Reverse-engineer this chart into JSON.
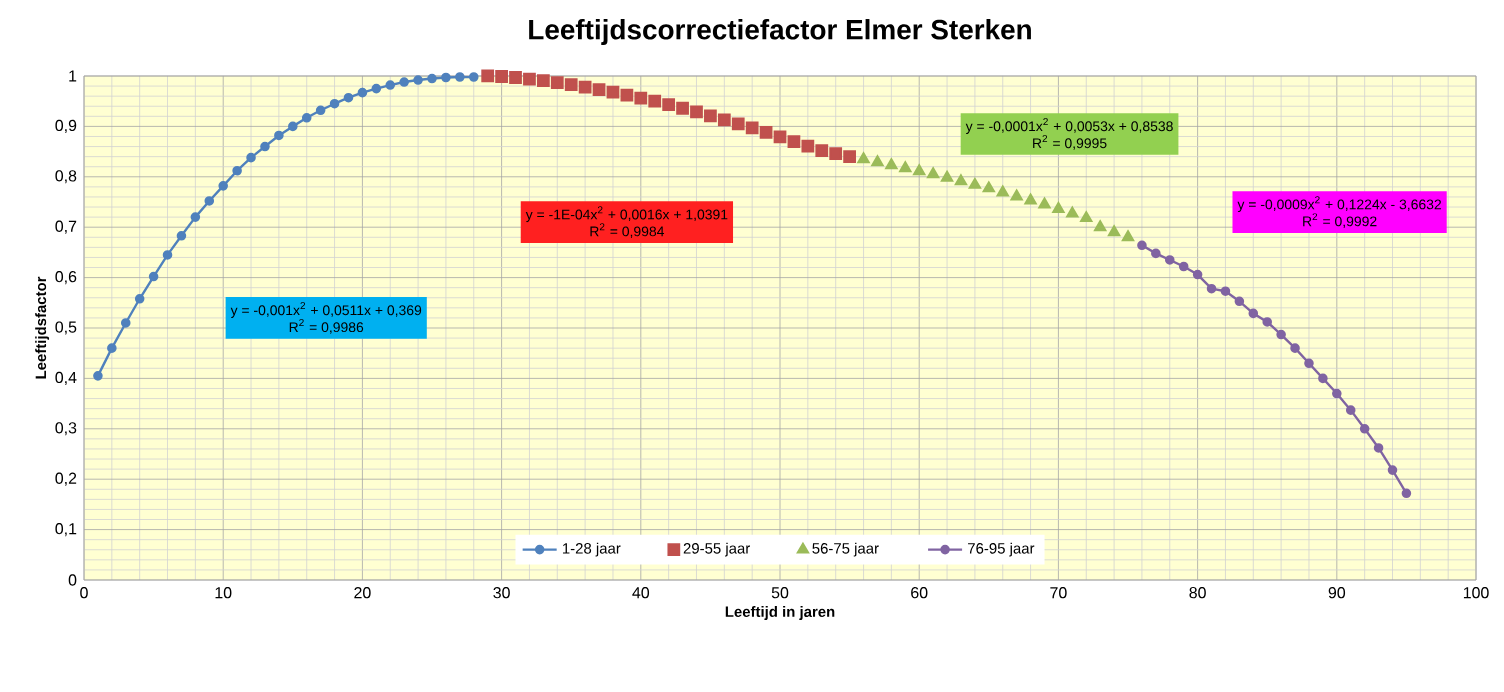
{
  "chart_data": {
    "type": "line",
    "title": "Leeftijdscorrectiefactor Elmer Sterken",
    "xlabel": "Leeftijd in jaren",
    "ylabel": "Leeftijdsfactor",
    "xlim": [
      0,
      100
    ],
    "xticks": [
      0,
      10,
      20,
      30,
      40,
      50,
      60,
      70,
      80,
      90,
      100
    ],
    "ylim": [
      0,
      1
    ],
    "yticks": [
      0,
      {
        "value": 0.1,
        "label": "0,1"
      },
      {
        "value": 0.2,
        "label": "0,2"
      },
      {
        "value": 0.3,
        "label": "0,3"
      },
      {
        "value": 0.4,
        "label": "0,4"
      },
      {
        "value": 0.5,
        "label": "0,5"
      },
      {
        "value": 0.6,
        "label": "0,6"
      },
      {
        "value": 0.7,
        "label": "0,7"
      },
      {
        "value": 0.8,
        "label": "0,8"
      },
      {
        "value": 0.9,
        "label": "0,9"
      },
      1
    ],
    "grid": true,
    "legend": "bottom",
    "series": [
      {
        "name": "1-28 jaar",
        "marker": "circle",
        "color": "#4f81bd",
        "x": [
          1,
          2,
          3,
          4,
          5,
          6,
          7,
          8,
          9,
          10,
          11,
          12,
          13,
          14,
          15,
          16,
          17,
          18,
          19,
          20,
          21,
          22,
          23,
          24,
          25,
          26,
          27,
          28
        ],
        "values": [
          0.405,
          0.46,
          0.51,
          0.558,
          0.602,
          0.645,
          0.683,
          0.72,
          0.752,
          0.782,
          0.812,
          0.838,
          0.86,
          0.882,
          0.9,
          0.917,
          0.932,
          0.945,
          0.957,
          0.967,
          0.975,
          0.982,
          0.988,
          0.992,
          0.995,
          0.997,
          0.998,
          0.998
        ]
      },
      {
        "name": "29-55 jaar",
        "type": "scatter",
        "marker": "square",
        "color": "#c0504d",
        "x": [
          29,
          30,
          31,
          32,
          33,
          34,
          35,
          36,
          37,
          38,
          39,
          40,
          41,
          42,
          43,
          44,
          45,
          46,
          47,
          48,
          49,
          50,
          51,
          52,
          53,
          54,
          55
        ],
        "values": [
          1.0,
          0.999,
          0.997,
          0.994,
          0.991,
          0.987,
          0.983,
          0.978,
          0.973,
          0.968,
          0.962,
          0.956,
          0.95,
          0.943,
          0.936,
          0.929,
          0.921,
          0.913,
          0.905,
          0.897,
          0.888,
          0.879,
          0.87,
          0.861,
          0.852,
          0.846,
          0.84
        ]
      },
      {
        "name": "56-75 jaar",
        "type": "scatter",
        "marker": "triangle",
        "color": "#9bbb59",
        "x": [
          56,
          57,
          58,
          59,
          60,
          61,
          62,
          63,
          64,
          65,
          66,
          67,
          68,
          69,
          70,
          71,
          72,
          73,
          74,
          75
        ],
        "values": [
          0.835,
          0.829,
          0.823,
          0.817,
          0.811,
          0.805,
          0.798,
          0.791,
          0.784,
          0.777,
          0.769,
          0.761,
          0.753,
          0.745,
          0.736,
          0.727,
          0.718,
          0.7,
          0.69,
          0.68
        ]
      },
      {
        "name": "76-95 jaar",
        "marker": "circle",
        "color": "#8064a2",
        "x": [
          76,
          77,
          78,
          79,
          80,
          81,
          82,
          83,
          84,
          85,
          86,
          87,
          88,
          89,
          90,
          91,
          92,
          93,
          94,
          95
        ],
        "values": [
          0.664,
          0.648,
          0.635,
          0.622,
          0.606,
          0.578,
          0.573,
          0.553,
          0.529,
          0.512,
          0.487,
          0.46,
          0.43,
          0.4,
          0.37,
          0.337,
          0.3,
          0.262,
          0.218,
          0.172
        ]
      }
    ],
    "annotations": [
      "y = -0,001x$^{2}$ + 0,0511x + 0,369",
      "R$^{2}$ = 0,9986",
      "y = -1E-04x$^{2}$ + 0,0016x + 1,0391",
      "R$^{2}$ = 0,9984",
      "y = -0,0001x$^{2}$ + 0,0053x + 0,8538",
      "R$^{2}$ = 0,9995",
      "y = -0,0009x$^{2}$ + 0,1224x - 3,6632",
      "R$^{2}$ = 0,9992"
    ]
  }
}
